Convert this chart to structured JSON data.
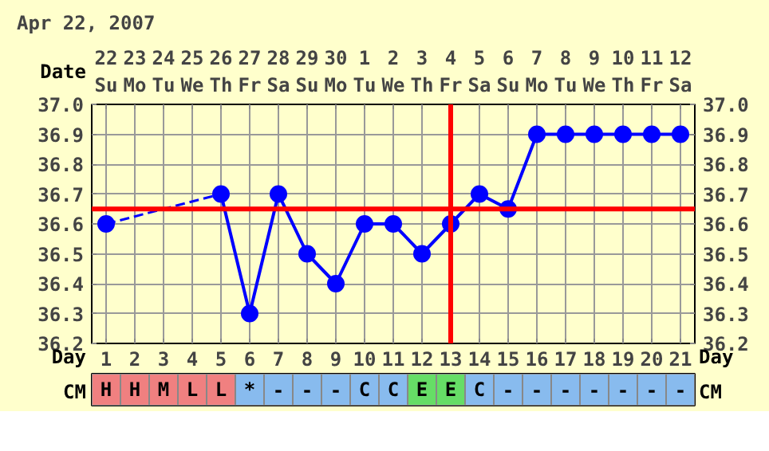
{
  "chart_data": [
    {
      "type": "line",
      "title": "Apr 22, 2007",
      "xlabel": "Day",
      "x2label": "Date",
      "x": [
        1,
        2,
        3,
        4,
        5,
        6,
        7,
        8,
        9,
        10,
        11,
        12,
        13,
        14,
        15,
        16,
        17,
        18,
        19,
        20,
        21
      ],
      "xlim": [
        0.5,
        21.5
      ],
      "xticks": [
        1,
        2,
        3,
        4,
        5,
        6,
        7,
        8,
        9,
        10,
        11,
        12,
        13,
        14,
        15,
        16,
        17,
        18,
        19,
        20,
        21
      ],
      "x2lim": [
        "2007-04-21T12:00",
        "2007-05-12T12:00"
      ],
      "x2ticks": [
        {
          "value": "2007-04-22",
          "label": "22\nSu"
        },
        {
          "value": "2007-04-23",
          "label": "23\nMo"
        },
        {
          "value": "2007-04-24",
          "label": "24\nTu"
        },
        {
          "value": "2007-04-25",
          "label": "25\nWe"
        },
        {
          "value": "2007-04-26",
          "label": "26\nTh"
        },
        {
          "value": "2007-04-27",
          "label": "27\nFr"
        },
        {
          "value": "2007-04-28",
          "label": "28\nSa"
        },
        {
          "value": "2007-04-29",
          "label": "29\nSu"
        },
        {
          "value": "2007-04-30",
          "label": "30\nMo"
        },
        {
          "value": "2007-05-01",
          "label": "1\nTu"
        },
        {
          "value": "2007-05-02",
          "label": "2\nWe"
        },
        {
          "value": "2007-05-03",
          "label": "3\nTh"
        },
        {
          "value": "2007-05-04",
          "label": "4\nFr"
        },
        {
          "value": "2007-05-05",
          "label": "5\nSa"
        },
        {
          "value": "2007-05-06",
          "label": "6\nSu"
        },
        {
          "value": "2007-05-07",
          "label": "7\nMo"
        },
        {
          "value": "2007-05-08",
          "label": "8\nTu"
        },
        {
          "value": "2007-05-09",
          "label": "9\nWe"
        },
        {
          "value": "2007-05-10",
          "label": "10\nTh"
        },
        {
          "value": "2007-05-11",
          "label": "11\nFr"
        },
        {
          "value": "2007-05-12",
          "label": "12\nSa"
        }
      ],
      "ylim": [
        36.2,
        37.0
      ],
      "yticks": [
        {
          "value": 36.2,
          "label": "36.2"
        },
        {
          "value": 36.3,
          "label": "36.3"
        },
        {
          "value": 36.4,
          "label": "36.4"
        },
        {
          "value": 36.5,
          "label": "36.5"
        },
        {
          "value": 36.6,
          "label": "36.6"
        },
        {
          "value": 36.7,
          "label": "36.7"
        },
        {
          "value": 36.8,
          "label": "36.8"
        },
        {
          "value": 36.9,
          "label": "36.9"
        },
        {
          "value": 37.0,
          "label": "37.0"
        }
      ],
      "y2lim": [
        36.2,
        37.0
      ],
      "y2ticks": [
        {
          "value": 36.2,
          "label": "36.2"
        },
        {
          "value": 36.3,
          "label": "36.3"
        },
        {
          "value": 36.4,
          "label": "36.4"
        },
        {
          "value": 36.5,
          "label": "36.5"
        },
        {
          "value": 36.6,
          "label": "36.6"
        },
        {
          "value": 36.7,
          "label": "36.7"
        },
        {
          "value": 36.8,
          "label": "36.8"
        },
        {
          "value": 36.9,
          "label": "36.9"
        },
        {
          "value": 37.0,
          "label": "37.0"
        }
      ],
      "grid": true,
      "marker": "circle",
      "line_style": "solid",
      "series": [
        {
          "color": "#0000ff",
          "values": [
            36.6,
            null,
            null,
            null,
            36.7,
            36.3,
            36.7,
            36.5,
            36.4,
            36.6,
            36.6,
            36.5,
            36.6,
            36.7,
            36.65,
            36.9,
            36.9,
            36.9,
            36.9,
            36.9,
            36.9
          ]
        }
      ],
      "ref_lines": [
        {
          "axis": "y",
          "value": 36.65,
          "color": "#ff0000"
        },
        {
          "axis": "x",
          "value": 13,
          "color": "#ff0000"
        }
      ]
    },
    {
      "type": "other",
      "ylabel": "CM",
      "categories": [
        "H",
        "H",
        "M",
        "L",
        "L",
        "*",
        "-",
        "-",
        "-",
        "C",
        "C",
        "E",
        "E",
        "C",
        "-",
        "-",
        "-",
        "-",
        "-",
        "-",
        "-"
      ],
      "colors": [
        "#f08080",
        "#f08080",
        "#f08080",
        "#f08080",
        "#f08080",
        "#88bbee",
        "#88bbee",
        "#88bbee",
        "#88bbee",
        "#88bbee",
        "#88bbee",
        "#66dd66",
        "#66dd66",
        "#88bbee",
        "#88bbee",
        "#88bbee",
        "#88bbee",
        "#88bbee",
        "#88bbee",
        "#88bbee",
        "#88bbee"
      ]
    }
  ]
}
